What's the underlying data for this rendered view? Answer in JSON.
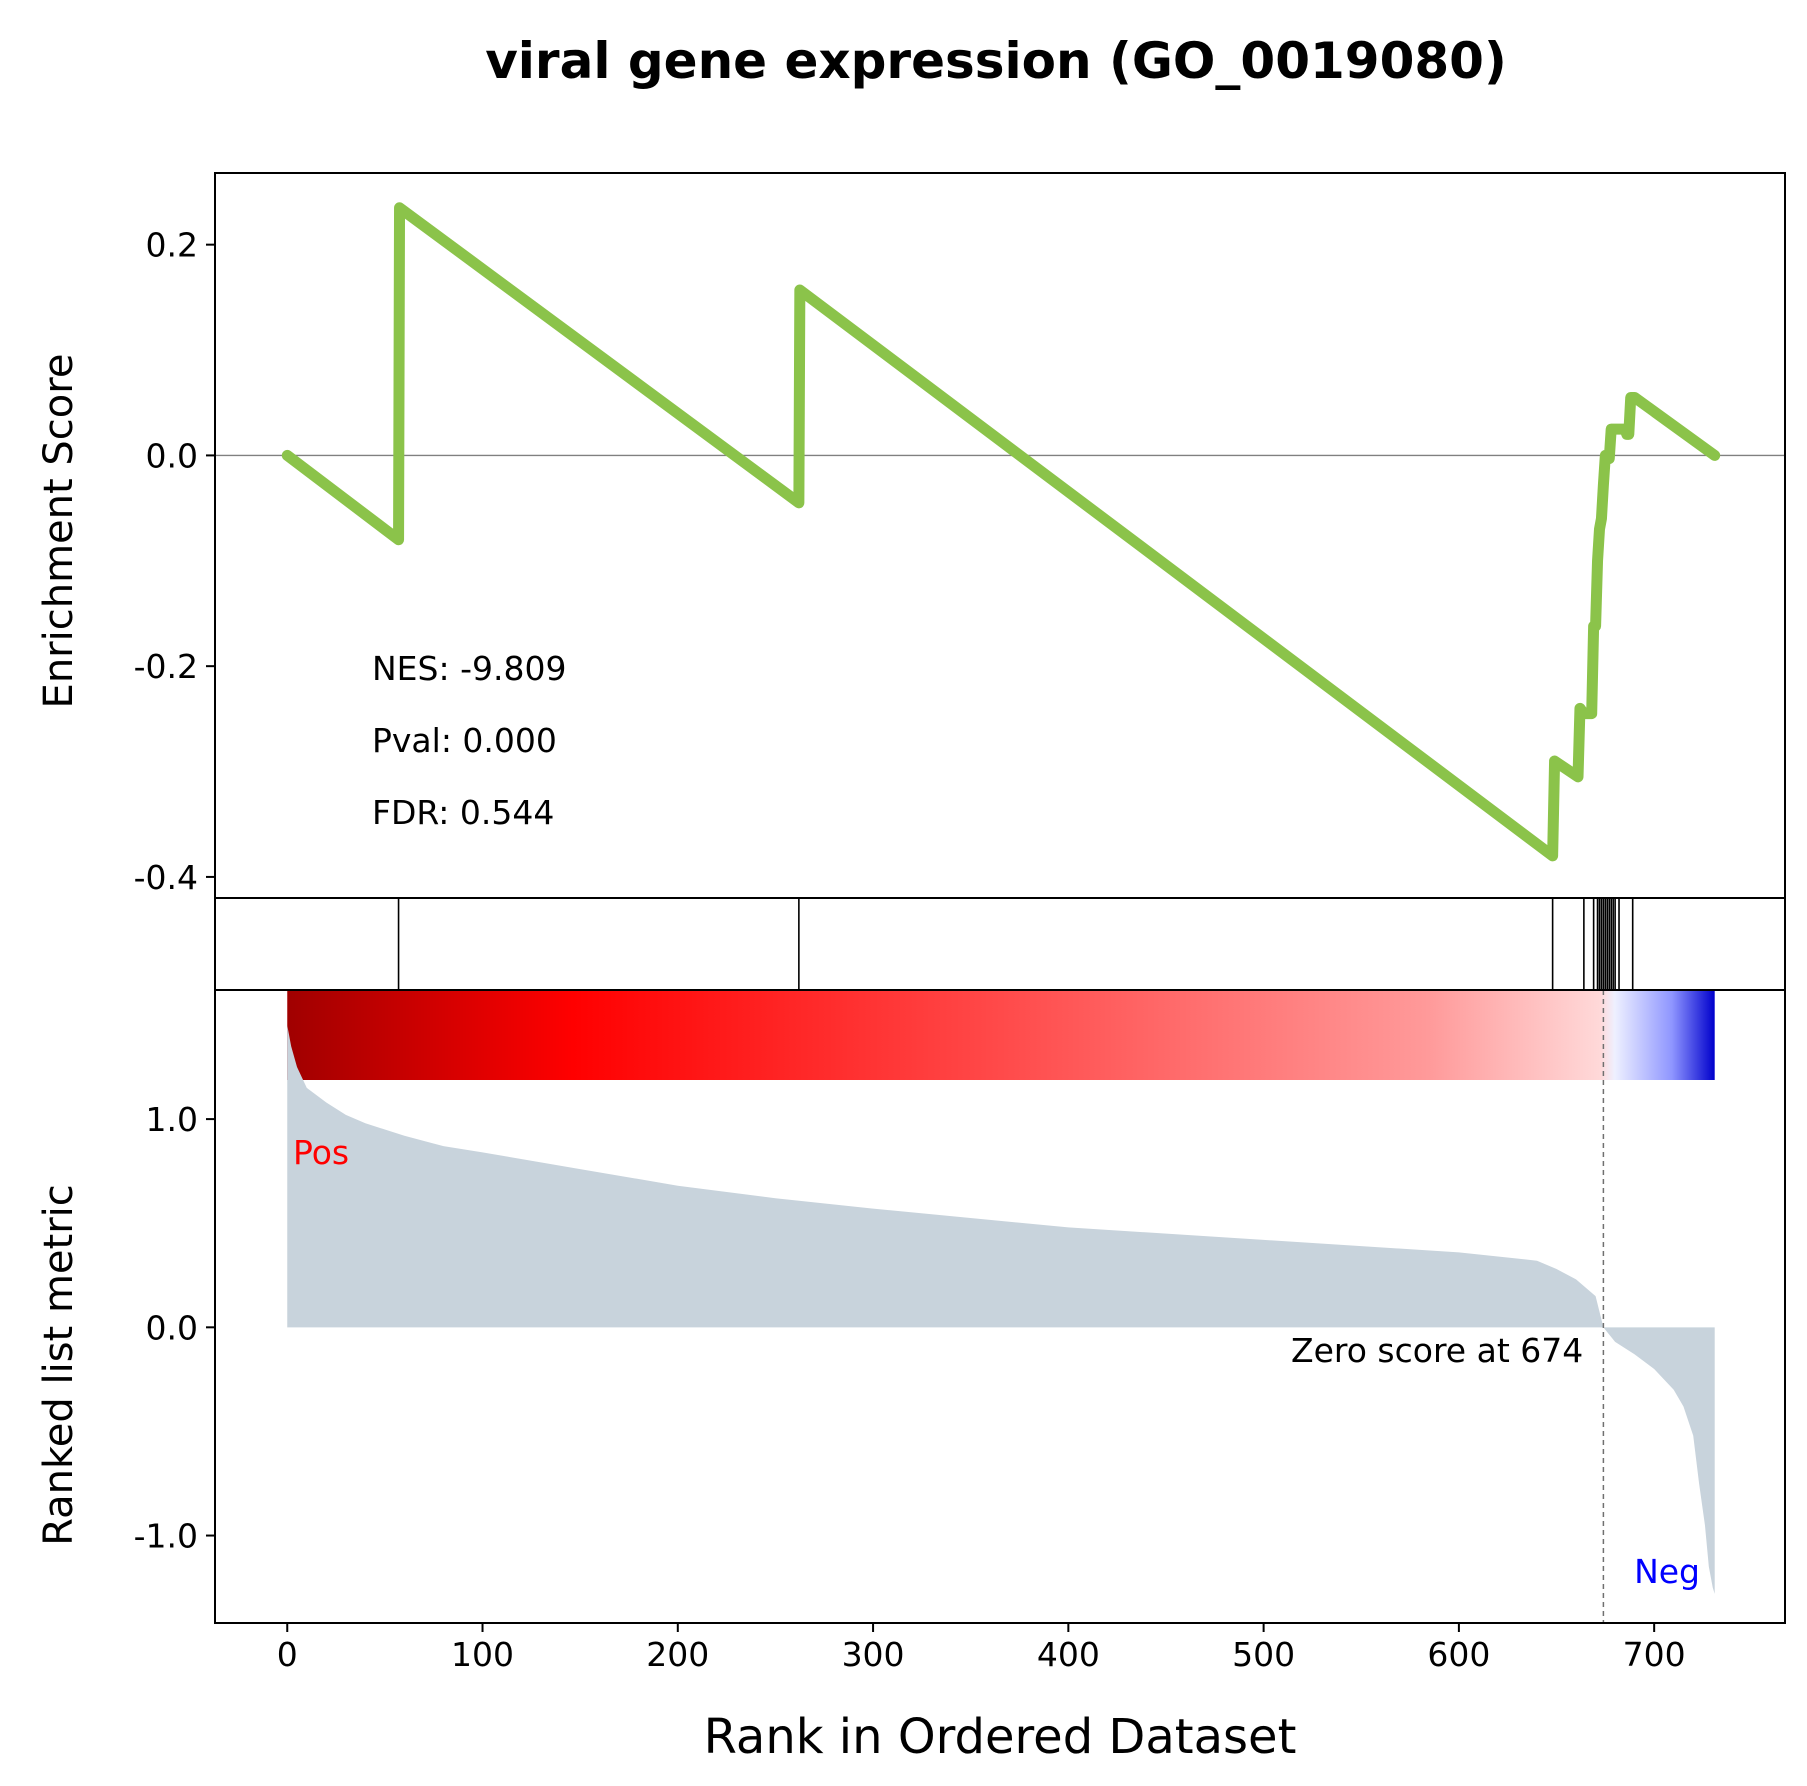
{
  "chart_data": {
    "type": "line",
    "title": "viral gene expression (GO_0019080)",
    "xlabel": "Rank in Ordered Dataset",
    "x_ticks": [
      0,
      100,
      200,
      300,
      400,
      500,
      600,
      700
    ],
    "xlim": [
      -37,
      767
    ],
    "es_panel": {
      "ylabel": "Enrichment Score",
      "ylim": [
        -0.42,
        0.268
      ],
      "y_ticks": [
        0.2,
        0.0,
        -0.2,
        -0.4
      ],
      "y_tick_labels": [
        "0.2",
        "0.0",
        "-0.2",
        "-0.4"
      ],
      "zero_line": true,
      "line_color": "#8bc34a",
      "series": [
        {
          "x": [
            0,
            57,
            57.5,
            262,
            262.5,
            648,
            649,
            661,
            662,
            664,
            668,
            669,
            670,
            671,
            672,
            673,
            674,
            675,
            676,
            677,
            678,
            679,
            680,
            681,
            682,
            683,
            684,
            685,
            686,
            687,
            688,
            689,
            690,
            731
          ],
          "y": [
            0.0,
            -0.08,
            0.235,
            -0.045,
            0.157,
            -0.38,
            -0.29,
            -0.305,
            -0.24,
            -0.245,
            -0.245,
            -0.162,
            -0.162,
            -0.1,
            -0.07,
            -0.06,
            -0.028,
            0.0,
            0.0,
            -0.003,
            0.025,
            0.025,
            0.025,
            0.025,
            0.025,
            0.025,
            0.025,
            0.025,
            0.02,
            0.02,
            0.055,
            0.055,
            0.055,
            0.0
          ]
        }
      ],
      "annotations": [
        "NES: -9.809",
        "Pval: 0.000",
        "FDR: 0.544"
      ]
    },
    "hits_panel": {
      "hit_ranks": [
        57,
        262,
        648,
        664,
        669,
        671,
        672,
        673,
        674,
        675,
        676,
        677,
        678,
        679,
        680,
        682,
        689
      ]
    },
    "metric_panel": {
      "ylabel": "Ranked list metric",
      "ylim": [
        -1.42,
        1.62
      ],
      "y_ticks": [
        1.0,
        0.0,
        -1.0
      ],
      "y_tick_labels": [
        "1.0",
        "0.0",
        "-1.0"
      ],
      "fill_color": "#c8d3dc",
      "series": [
        {
          "x": [
            0,
            2,
            5,
            10,
            20,
            30,
            40,
            60,
            80,
            100,
            150,
            200,
            250,
            300,
            400,
            500,
            550,
            600,
            640,
            650,
            660,
            670,
            674,
            680,
            690,
            700,
            710,
            715,
            720,
            723,
            726,
            728,
            730,
            731
          ],
          "y": [
            1.45,
            1.35,
            1.25,
            1.15,
            1.08,
            1.02,
            0.98,
            0.92,
            0.87,
            0.84,
            0.76,
            0.68,
            0.62,
            0.57,
            0.48,
            0.42,
            0.39,
            0.36,
            0.32,
            0.28,
            0.23,
            0.15,
            0.0,
            -0.07,
            -0.13,
            -0.2,
            -0.3,
            -0.38,
            -0.52,
            -0.75,
            -0.95,
            -1.15,
            -1.25,
            -1.28
          ]
        }
      ],
      "zero_cross_rank": 674,
      "zero_label": "Zero score at 674",
      "pos_label": "Pos",
      "neg_label": "Neg",
      "pos_color": "#ff0000",
      "neg_color": "#0000ff"
    },
    "colorbar": {
      "stops": [
        {
          "at": 0.0,
          "color": "#a00000"
        },
        {
          "at": 0.2,
          "color": "#ff0000"
        },
        {
          "at": 0.5,
          "color": "#ff4a4a"
        },
        {
          "at": 0.8,
          "color": "#ff9a9a"
        },
        {
          "at": 0.92,
          "color": "#ffd9d9"
        },
        {
          "at": 0.93,
          "color": "#eef0ff"
        },
        {
          "at": 0.97,
          "color": "#8f96ff"
        },
        {
          "at": 1.0,
          "color": "#0000cc"
        }
      ]
    }
  }
}
